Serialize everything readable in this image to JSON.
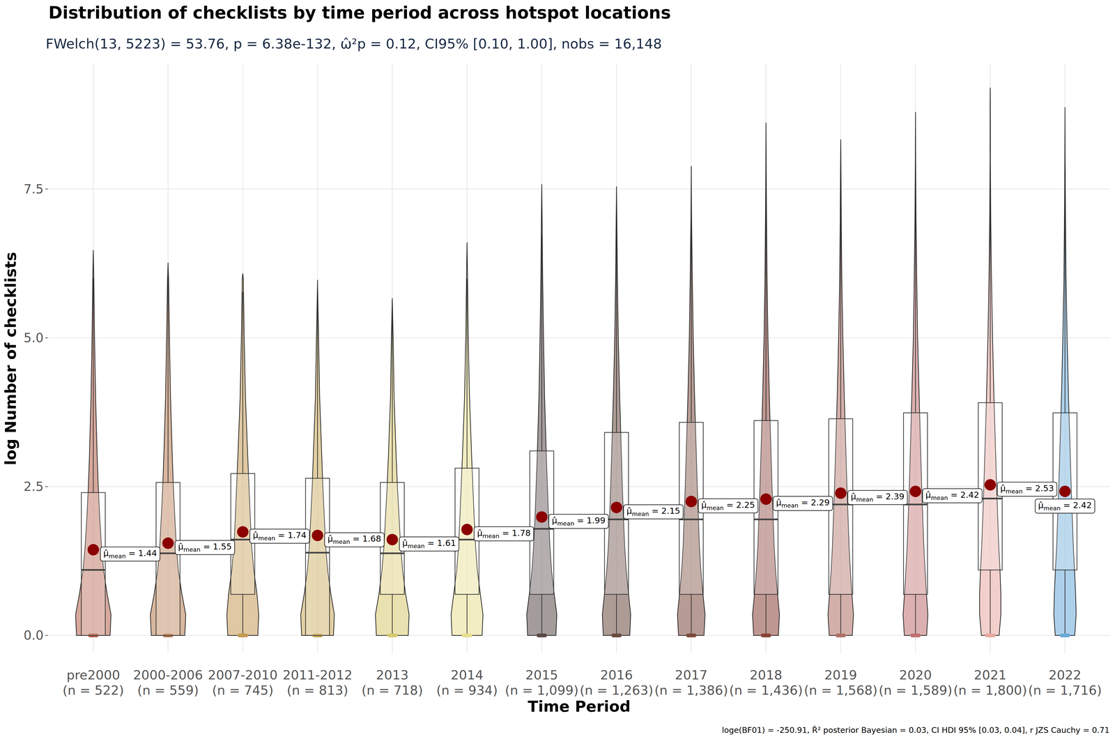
{
  "chart_data": {
    "type": "violin",
    "title": "Distribution of checklists by time period across hotspot locations",
    "subtitle": "FWelch(13, 5223) = 53.76, p = 6.38e-132, ω̂²p = 0.12, CI95% [0.10, 1.00], nobs = 16,148",
    "caption": "loge(BF01) = -250.91, R̂² posterior Bayesian = 0.03, CI HDI 95% [0.03, 0.04], r JZS Cauchy = 0.71",
    "x_label": "Time Period",
    "y_label": "log Number of checklists",
    "categories": [
      "pre2000",
      "2000-2006",
      "2007-2010",
      "2011-2012",
      "2013",
      "2014",
      "2015",
      "2016",
      "2017",
      "2018",
      "2019",
      "2020",
      "2021",
      "2022"
    ],
    "n_labels": [
      "(n = 522)",
      "(n = 559)",
      "(n = 745)",
      "(n = 813)",
      "(n = 718)",
      "(n = 934)",
      "(n = 1,099)",
      "(n = 1,263)",
      "(n = 1,386)",
      "(n = 1,436)",
      "(n = 1,568)",
      "(n = 1,589)",
      "(n = 1,800)",
      "(n = 1,716)"
    ],
    "colors": [
      "#b5604a",
      "#b87a4e",
      "#c49a55",
      "#c8a855",
      "#d8c870",
      "#e8df90",
      "#5a4a48",
      "#6a4a40",
      "#7a4a3c",
      "#8a4238",
      "#b07065",
      "#c07070",
      "#e8a8a0",
      "#6aaad8"
    ],
    "means": [
      1.44,
      1.55,
      1.74,
      1.68,
      1.61,
      1.78,
      1.99,
      2.15,
      2.25,
      2.29,
      2.39,
      2.42,
      2.53,
      2.42
    ],
    "mean_symbol": "μ̂",
    "mean_subscript": "mean",
    "value_labels": [
      "μ̂mean = 1.44",
      "μ̂mean = 1.55",
      "μ̂mean = 1.74",
      "μ̂mean = 1.68",
      "μ̂mean = 1.61",
      "μ̂mean = 1.78",
      "μ̂mean = 1.99",
      "μ̂mean = 2.15",
      "μ̂mean = 2.25",
      "μ̂mean = 2.29",
      "μ̂mean = 2.39",
      "μ̂mean = 2.42",
      "μ̂mean = 2.53",
      "μ̂mean = 2.42"
    ],
    "medians": [
      1.1,
      1.38,
      1.61,
      1.39,
      1.38,
      1.61,
      1.79,
      1.95,
      1.95,
      1.95,
      2.2,
      2.2,
      2.3,
      2.2
    ],
    "q1": [
      0,
      0,
      0.69,
      0,
      0.69,
      0.69,
      0.69,
      0.69,
      0.69,
      0.69,
      0.69,
      0.69,
      1.1,
      1.1
    ],
    "q3": [
      2.4,
      2.57,
      2.72,
      2.64,
      2.57,
      2.81,
      3.1,
      3.41,
      3.58,
      3.61,
      3.64,
      3.74,
      3.91,
      3.74
    ],
    "whisker_low": [
      0,
      0,
      0,
      0,
      0,
      0,
      0,
      0,
      0,
      0,
      0,
      0,
      0,
      0
    ],
    "whisker_high": [
      6.0,
      6.26,
      5.77,
      5.97,
      5.39,
      5.99,
      6.72,
      7.49,
      7.88,
      7.99,
      8.07,
      8.32,
      8.13,
      7.7
    ],
    "min": [
      0,
      0,
      0,
      0,
      0,
      0,
      0,
      0,
      0,
      0,
      0,
      0,
      0,
      0
    ],
    "max": [
      6.47,
      6.26,
      6.08,
      5.97,
      5.66,
      6.6,
      7.58,
      7.54,
      7.88,
      8.61,
      8.33,
      8.79,
      9.2,
      8.87
    ],
    "density_y": [
      0,
      0.35,
      0.7,
      1.1,
      1.5,
      2,
      2.5,
      3,
      4,
      5,
      6,
      7,
      8,
      9
    ],
    "density": [
      [
        0.95,
        1,
        0.78,
        0.58,
        0.46,
        0.36,
        0.28,
        0.22,
        0.13,
        0.07,
        0.03,
        null,
        null,
        null
      ],
      [
        0.95,
        1,
        0.78,
        0.58,
        0.47,
        0.38,
        0.3,
        0.24,
        0.14,
        0.08,
        0.03,
        null,
        null,
        null
      ],
      [
        0.85,
        0.9,
        0.8,
        0.62,
        0.5,
        0.42,
        0.35,
        0.28,
        0.15,
        0.08,
        0.03,
        null,
        null,
        null
      ],
      [
        0.9,
        0.95,
        0.75,
        0.57,
        0.46,
        0.38,
        0.3,
        0.24,
        0.12,
        0.06,
        null,
        null,
        null,
        null
      ],
      [
        0.9,
        0.95,
        0.75,
        0.58,
        0.47,
        0.38,
        0.29,
        0.22,
        0.1,
        0.05,
        null,
        null,
        null,
        null
      ],
      [
        0.85,
        0.9,
        0.75,
        0.58,
        0.48,
        0.4,
        0.33,
        0.26,
        0.14,
        0.07,
        0.03,
        null,
        null,
        null
      ],
      [
        0.8,
        0.85,
        0.7,
        0.55,
        0.46,
        0.38,
        0.32,
        0.26,
        0.16,
        0.1,
        0.05,
        0.02,
        null,
        null
      ],
      [
        0.75,
        0.8,
        0.68,
        0.55,
        0.46,
        0.39,
        0.33,
        0.28,
        0.18,
        0.1,
        0.05,
        0.02,
        null,
        null
      ],
      [
        0.72,
        0.78,
        0.66,
        0.54,
        0.46,
        0.4,
        0.34,
        0.29,
        0.19,
        0.11,
        0.06,
        0.02,
        null,
        null
      ],
      [
        0.7,
        0.76,
        0.65,
        0.54,
        0.46,
        0.4,
        0.34,
        0.29,
        0.19,
        0.11,
        0.06,
        0.03,
        0.01,
        null
      ],
      [
        0.65,
        0.72,
        0.63,
        0.54,
        0.47,
        0.41,
        0.35,
        0.3,
        0.2,
        0.12,
        0.06,
        0.03,
        0.01,
        null
      ],
      [
        0.63,
        0.7,
        0.62,
        0.54,
        0.47,
        0.41,
        0.35,
        0.3,
        0.21,
        0.12,
        0.07,
        0.03,
        0.01,
        null
      ],
      [
        0.5,
        0.6,
        0.6,
        0.55,
        0.48,
        0.42,
        0.36,
        0.31,
        0.21,
        0.13,
        0.07,
        0.03,
        0.01,
        0.005
      ],
      [
        0.55,
        0.63,
        0.6,
        0.54,
        0.47,
        0.41,
        0.35,
        0.3,
        0.2,
        0.12,
        0.06,
        0.03,
        0.01,
        null
      ]
    ],
    "ylim": [
      -0.3,
      9.6
    ],
    "yticks": [
      {
        "value": 0,
        "label": "0.0"
      },
      {
        "value": 2.5,
        "label": "2.5"
      },
      {
        "value": 5,
        "label": "5.0"
      },
      {
        "value": 7.5,
        "label": "7.5"
      }
    ],
    "grid": true,
    "data_labels": true
  }
}
